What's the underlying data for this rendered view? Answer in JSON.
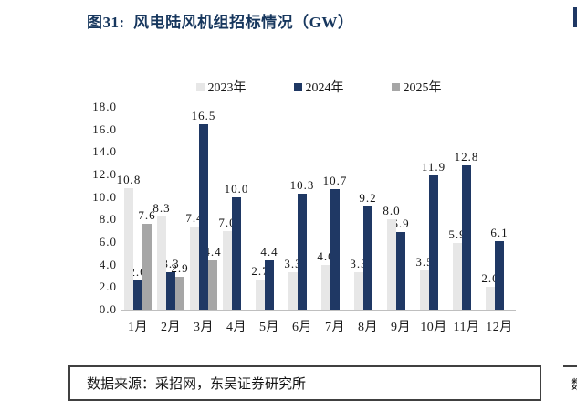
{
  "page_title": "图31:  风电陆风机组招标情况（GW）",
  "chart_data": {
    "type": "bar",
    "title": "图31: 风电陆风机组招标情况（GW）",
    "unit": "GW",
    "categories": [
      "1月",
      "2月",
      "3月",
      "4月",
      "5月",
      "6月",
      "7月",
      "8月",
      "9月",
      "10月",
      "11月",
      "12月"
    ],
    "series": [
      {
        "name": "2023年",
        "color": "#e7e7e7",
        "values": [
          10.8,
          8.3,
          7.4,
          7.0,
          2.7,
          3.3,
          4.0,
          3.3,
          8.0,
          3.5,
          5.9,
          2.0
        ]
      },
      {
        "name": "2024年",
        "color": "#1f3864",
        "values": [
          2.6,
          3.3,
          16.5,
          10.0,
          4.4,
          10.3,
          10.7,
          9.2,
          6.9,
          11.9,
          12.8,
          6.1
        ]
      },
      {
        "name": "2025年",
        "color": "#a6a6a6",
        "values": [
          7.6,
          2.9,
          4.4,
          null,
          null,
          null,
          null,
          null,
          null,
          null,
          null,
          null
        ]
      }
    ],
    "xlabel": "",
    "ylabel": "",
    "ylim": [
      0,
      18
    ],
    "ytick_step": 2,
    "yticks": [
      "0.0",
      "2.0",
      "4.0",
      "6.0",
      "8.0",
      "10.0",
      "12.0",
      "14.0",
      "16.0",
      "18.0"
    ],
    "legend_position": "top-center",
    "grid": false,
    "axis_line_color": "#bfbfbf",
    "label_color": "#141414"
  },
  "footer": {
    "source_text": "数据来源：采招网，东吴证券研究所"
  },
  "decorations": {
    "edge_fragment_text": "数",
    "accent_color": "#1f3864"
  }
}
